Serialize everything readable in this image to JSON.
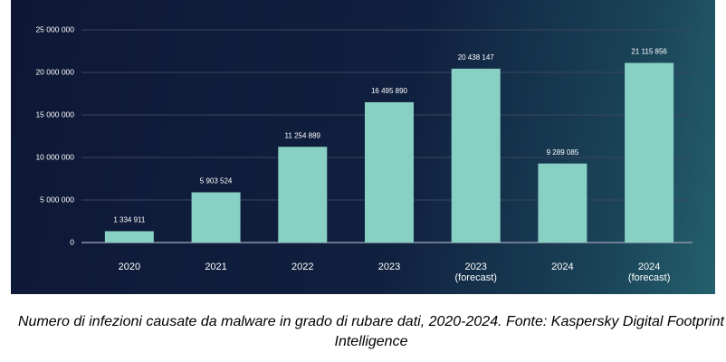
{
  "chart_data": {
    "type": "bar",
    "categories": [
      "2020",
      "2021",
      "2022",
      "2023",
      "2023 (forecast)",
      "2024",
      "2024 (forecast)"
    ],
    "values": [
      1334911,
      5903524,
      11254889,
      16495890,
      20438147,
      9289085,
      21115856
    ],
    "value_labels": [
      "1 334 911",
      "5 903 524",
      "11 254 889",
      "16 495 890",
      "20 438 147",
      "9 289 085",
      "21 115 856"
    ],
    "color": "#88d0c4",
    "ylim": [
      0,
      25000000
    ],
    "yticks": [
      0,
      {
        "value": 5000000,
        "label": "5 000 000"
      },
      {
        "value": 10000000,
        "label": "10 000 000"
      },
      {
        "value": 15000000,
        "label": "15 000 000"
      },
      {
        "value": 20000000,
        "label": "20 000 000"
      },
      {
        "value": 25000000,
        "label": "25 000 000"
      }
    ],
    "grid": true,
    "caption": "Numero di infezioni causate da malware in grado di rubare dati, 2020-2024. Fonte: Kaspersky Digital Footprint Intelligence"
  }
}
